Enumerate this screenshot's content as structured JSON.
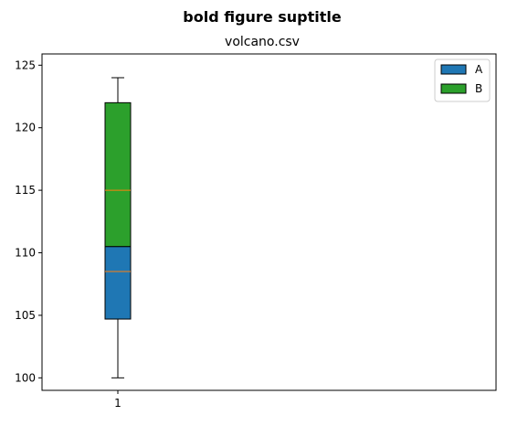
{
  "suptitle": "bold figure suptitle",
  "chart_data": {
    "type": "box",
    "title": "volcano.csv",
    "xlabel": "",
    "ylabel": "",
    "x_tick_labels": [
      "1"
    ],
    "ylim": [
      99,
      125.9
    ],
    "y_ticks": [
      100,
      105,
      110,
      115,
      120,
      125
    ],
    "grid": false,
    "legend": {
      "position": "top-right",
      "entries": [
        "A",
        "B"
      ]
    },
    "whiskers": {
      "low": 100,
      "high": 124
    },
    "series": [
      {
        "name": "A",
        "color": "#1f77b4",
        "box_bottom": 104.7,
        "box_top": 110.5,
        "median": 108.5
      },
      {
        "name": "B",
        "color": "#2ca02c",
        "box_bottom": 110.5,
        "box_top": 122.0,
        "median": 115.0
      }
    ],
    "median_color": "#ff7f0e"
  }
}
